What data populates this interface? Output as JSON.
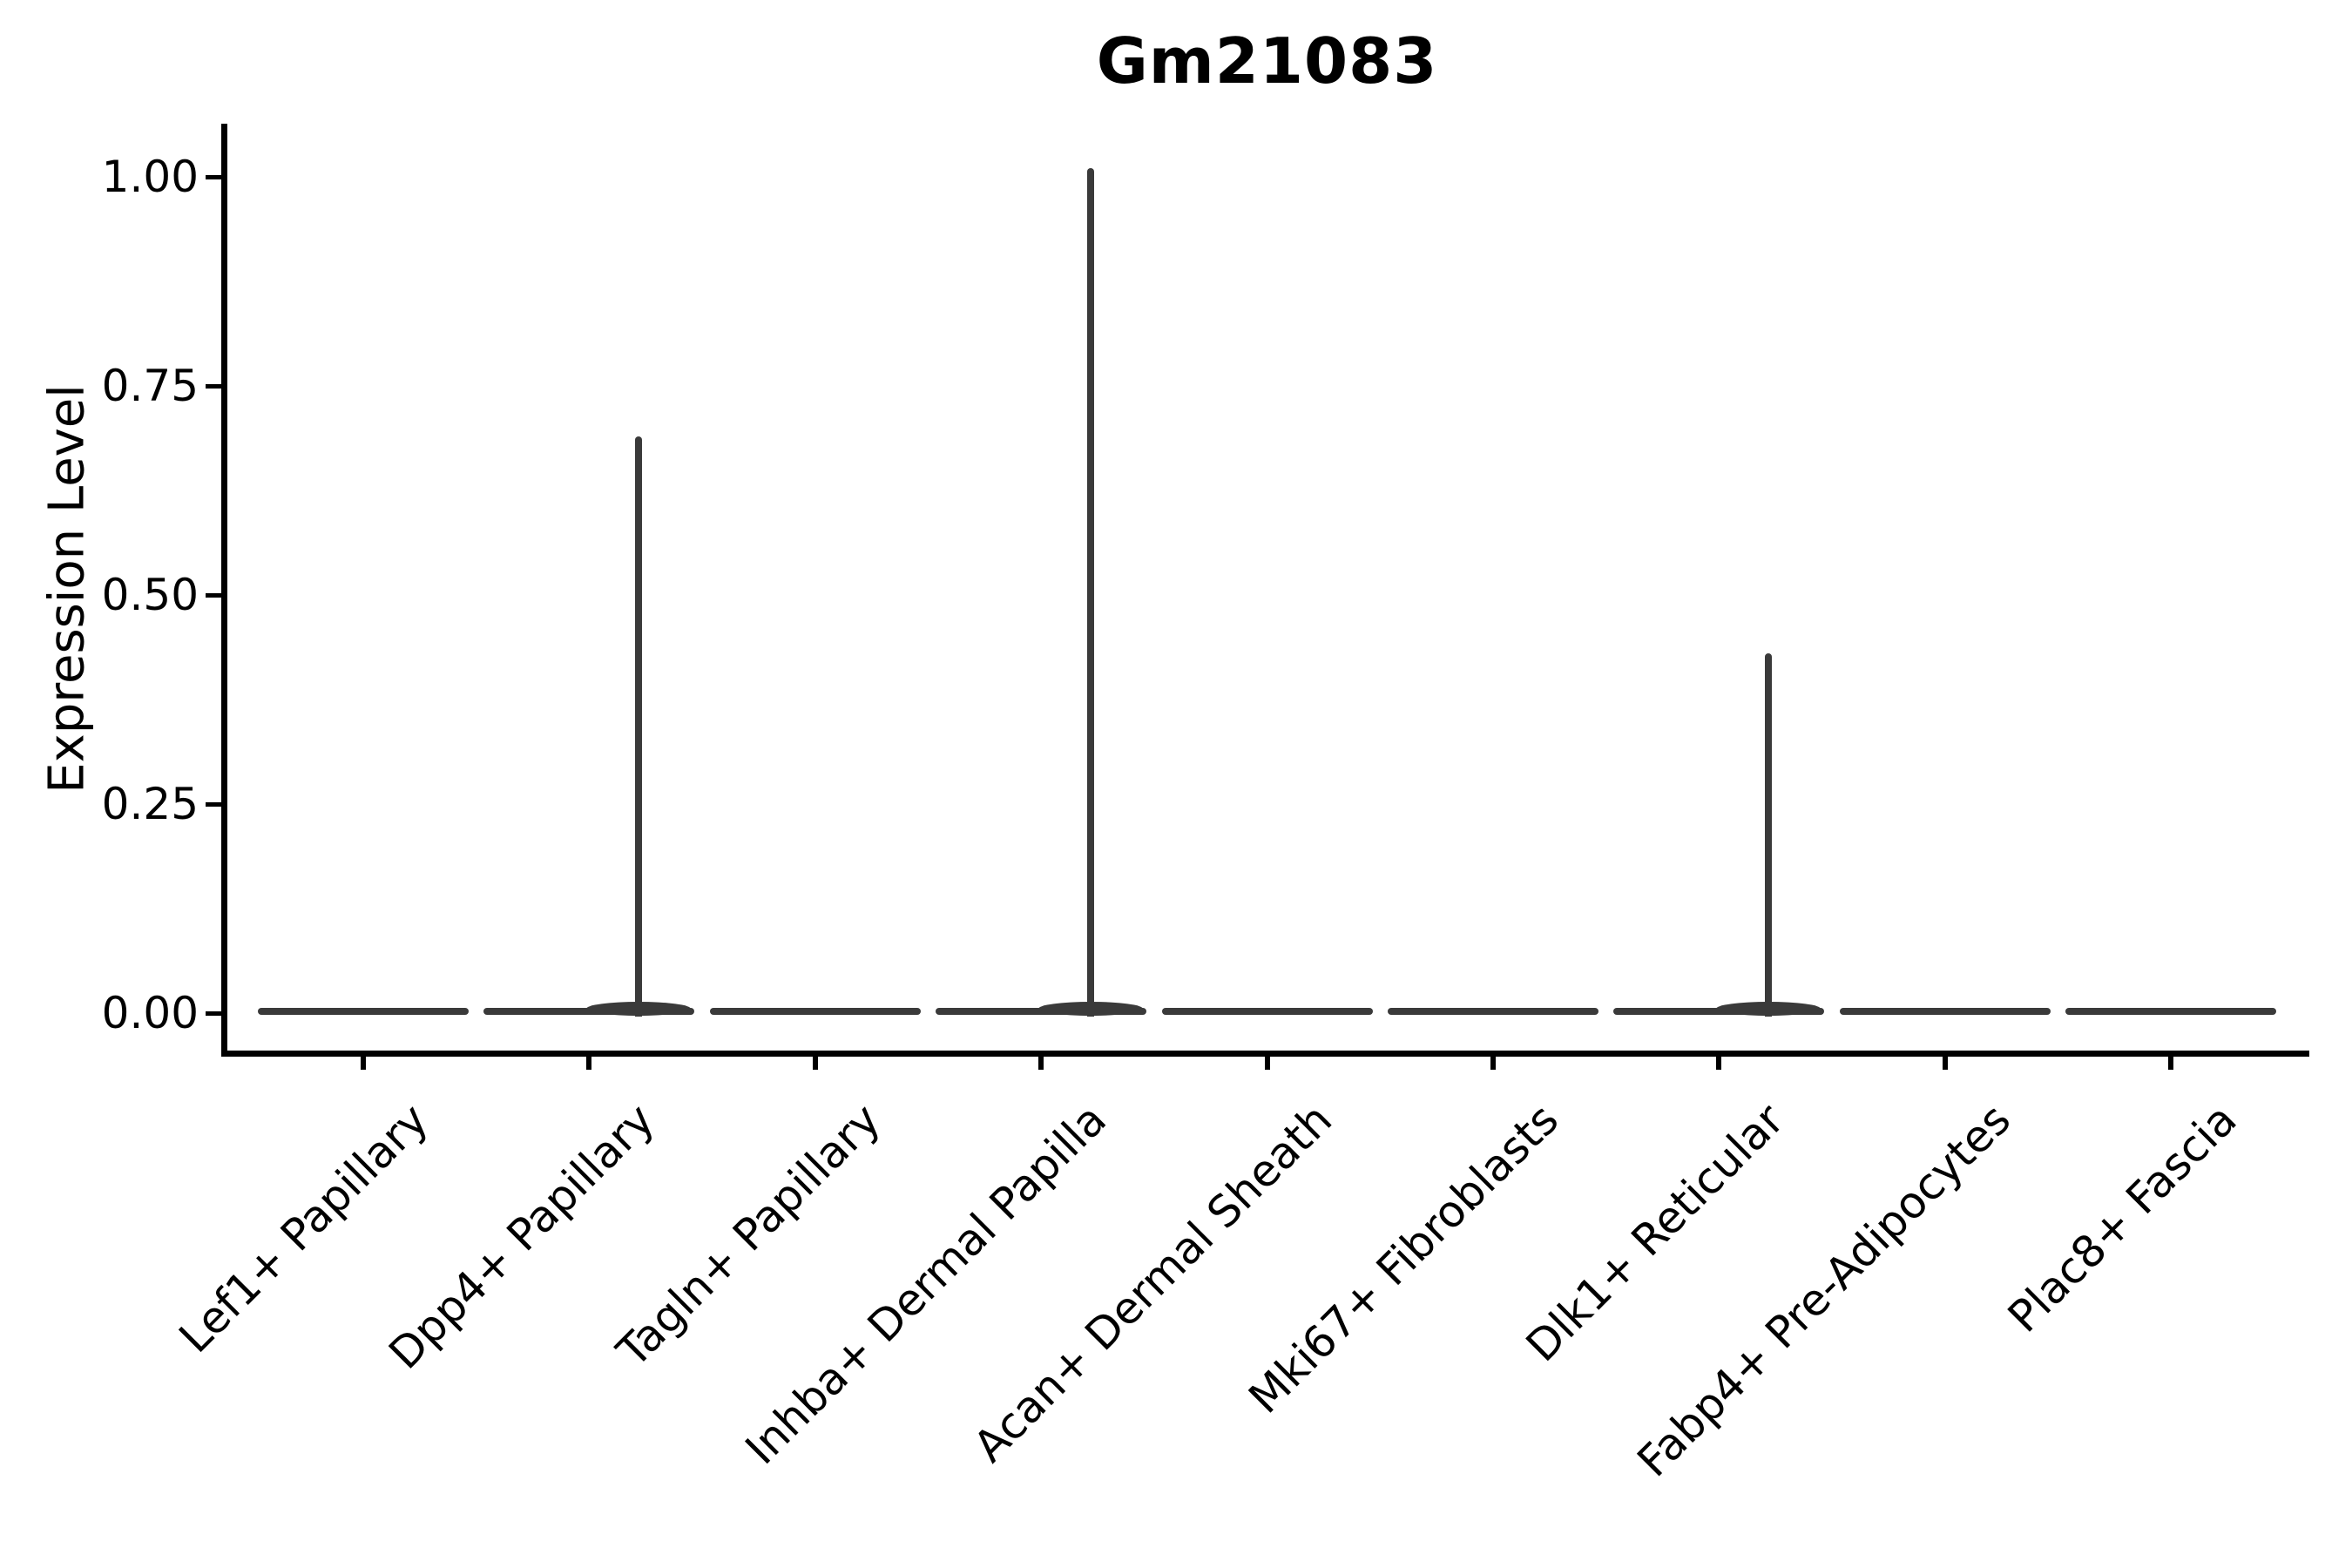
{
  "figure": {
    "background_color": "#ffffff",
    "axis_color": "#000000",
    "violin_color": "#3a3a3a"
  },
  "chart_data": {
    "type": "violin",
    "title": "Gm21083",
    "xlabel": "",
    "ylabel": "Expression Level",
    "ylim": [
      0,
      1.06
    ],
    "grid": "off",
    "legend": "none",
    "yticks": [
      "0.00",
      "0.25",
      "0.50",
      "0.75",
      "1.00"
    ],
    "ytick_values": [
      0.0,
      0.25,
      0.5,
      0.75,
      1.0
    ],
    "categories": [
      "Lef1+ Papillary",
      "Dpp4+ Papillary",
      "Tagln+ Papillary",
      "Inhba+ Dermal Papilla",
      "Acan+ Dermal Sheath",
      "Mki67+ Fibroblasts",
      "Dlk1+ Reticular",
      "Fabp4+ Pre-Adipocytes",
      "Plac8+ Fascia"
    ],
    "violins": [
      {
        "label": "Lef1+ Papillary",
        "baseline": 0.0,
        "peak": 0.0
      },
      {
        "label": "Dpp4+ Papillary",
        "baseline": 0.0,
        "peak": 0.69
      },
      {
        "label": "Tagln+ Papillary",
        "baseline": 0.0,
        "peak": 0.0
      },
      {
        "label": "Inhba+ Dermal Papilla",
        "baseline": 0.0,
        "peak": 1.01
      },
      {
        "label": "Acan+ Dermal Sheath",
        "baseline": 0.0,
        "peak": 0.0
      },
      {
        "label": "Mki67+ Fibroblasts",
        "baseline": 0.0,
        "peak": 0.0
      },
      {
        "label": "Dlk1+ Reticular",
        "baseline": 0.0,
        "peak": 0.43
      },
      {
        "label": "Fabp4+ Pre-Adipocytes",
        "baseline": 0.0,
        "peak": 0.0
      },
      {
        "label": "Plac8+ Fascia",
        "baseline": 0.0,
        "peak": 0.0
      }
    ],
    "description": "Violin plot of Gm21083 expression per fibroblast cluster; density is concentrated at 0 for all clusters (flat violins), with thin spikes reaching the peak expression value in Dpp4+ Papillary (0.69), Inhba+ Dermal Papilla (1.01) and Dlk1+ Reticular (0.43)."
  }
}
